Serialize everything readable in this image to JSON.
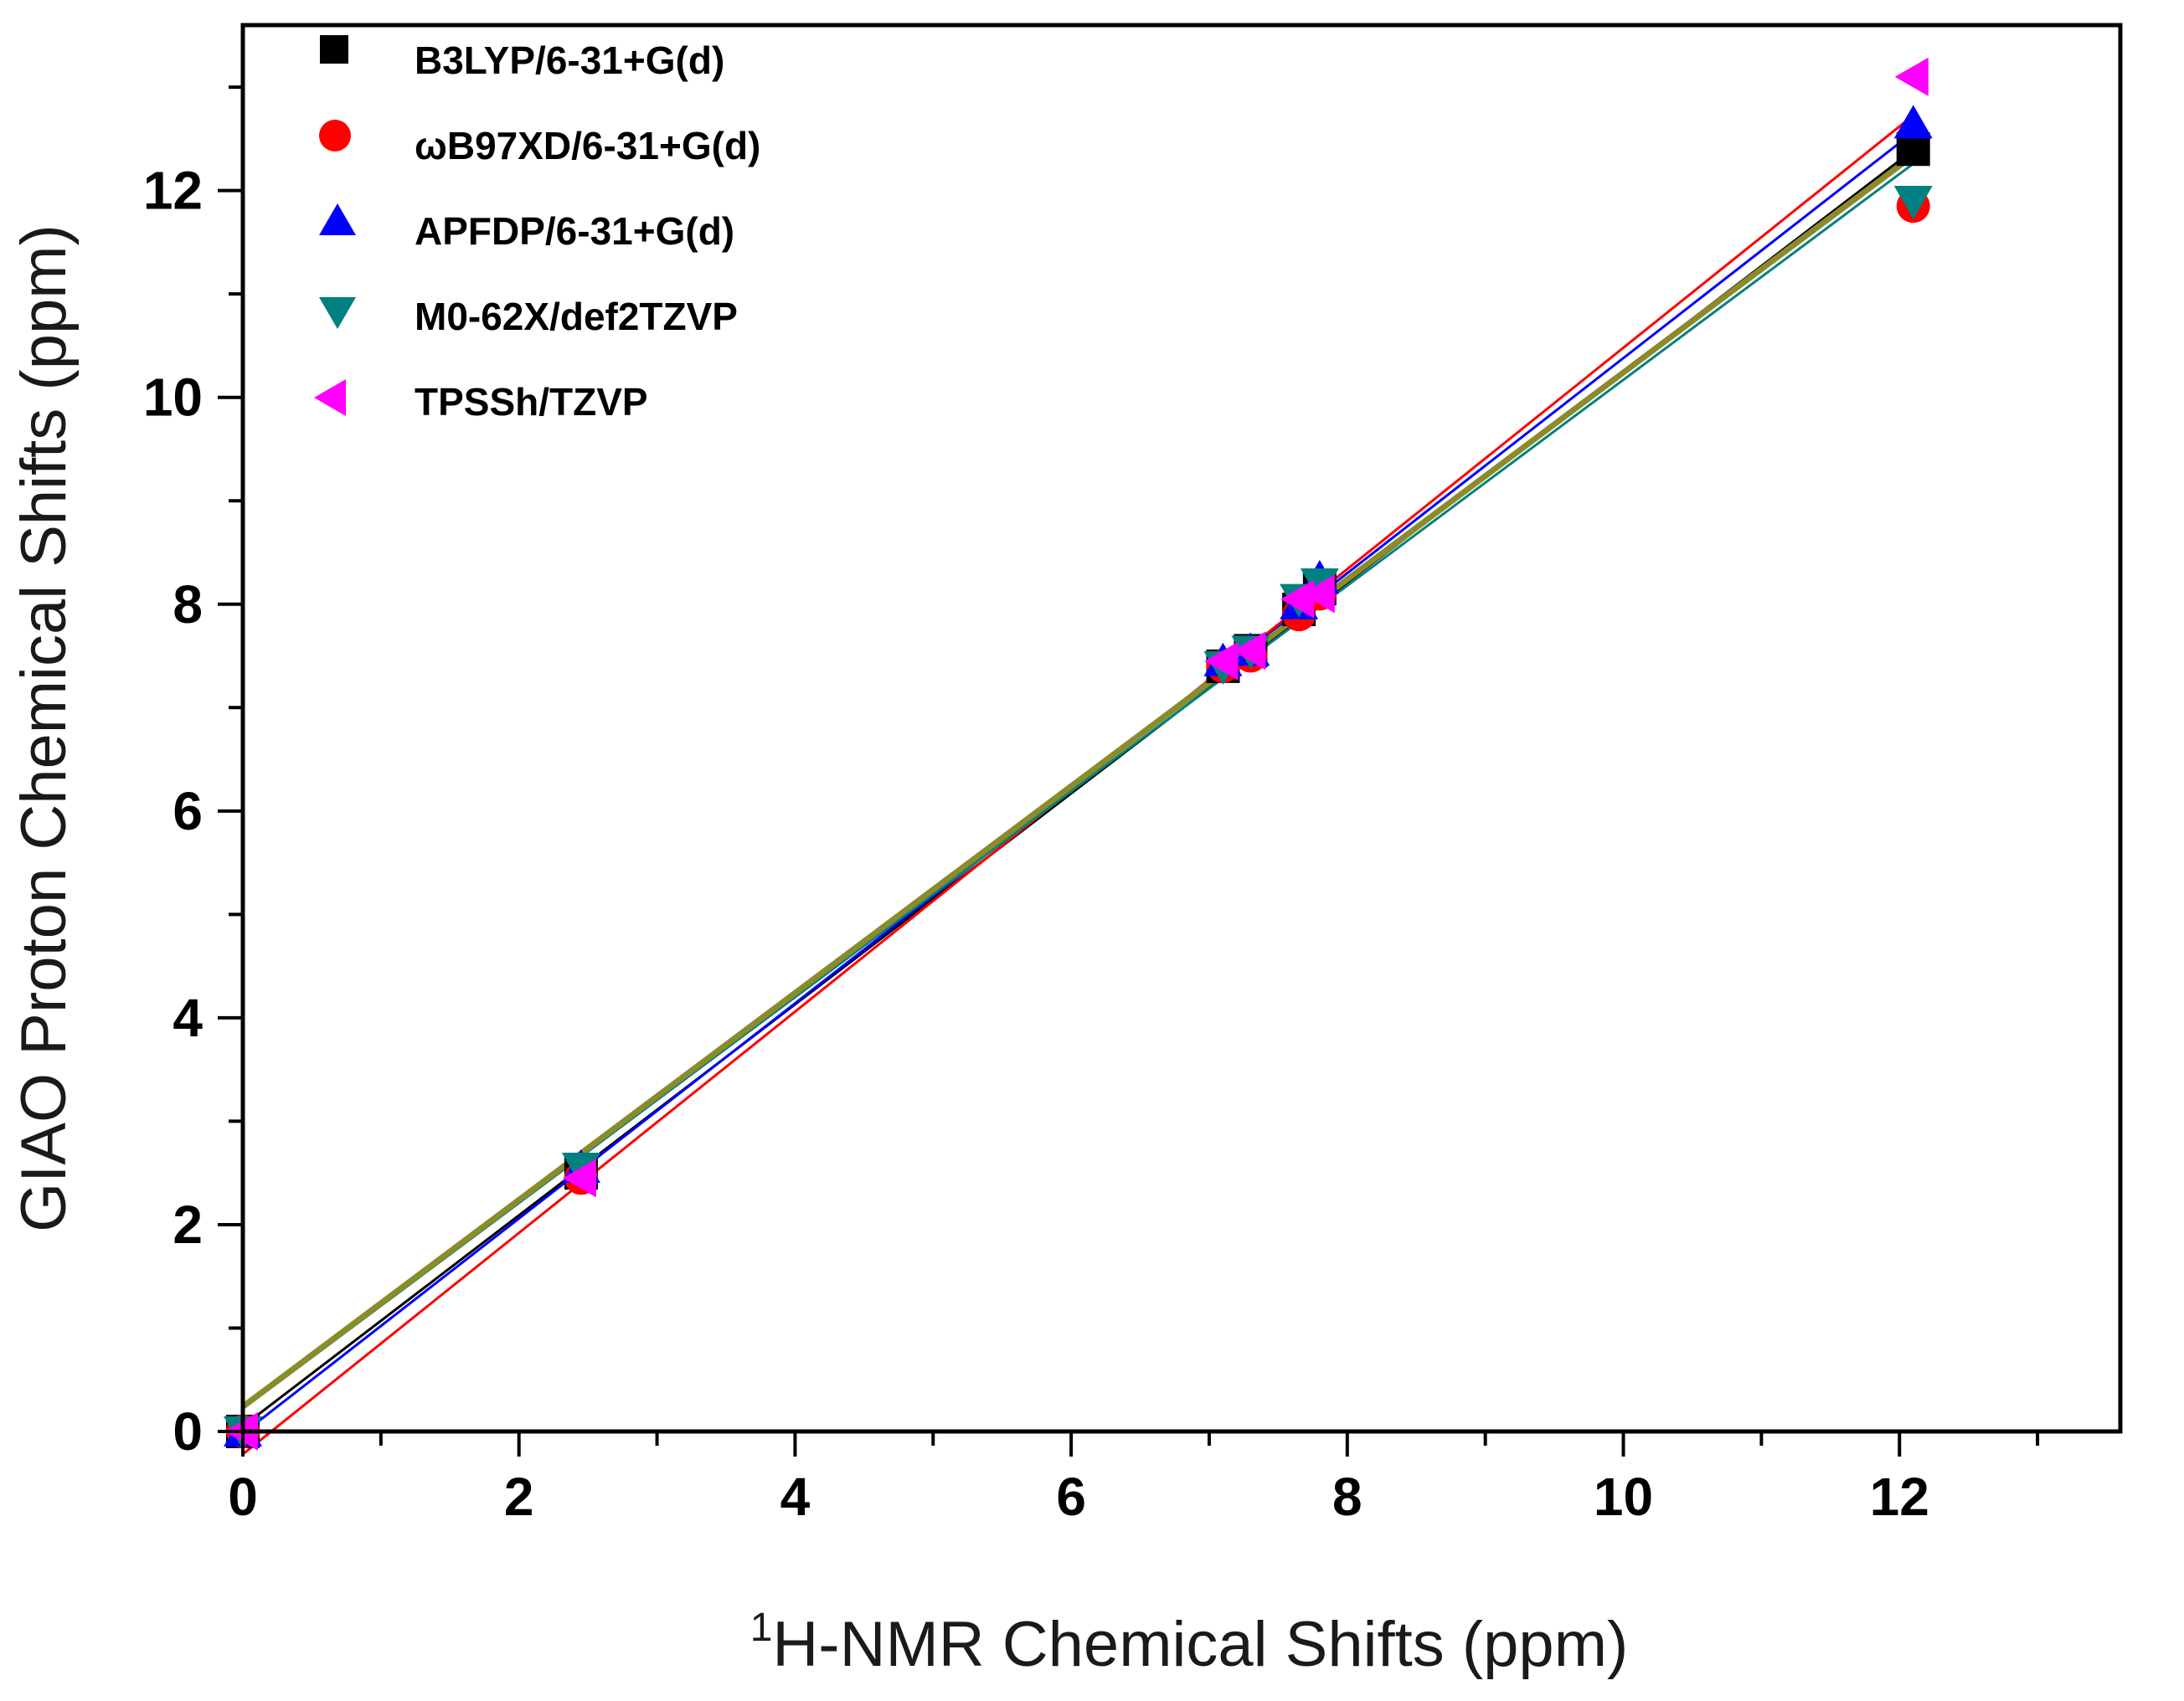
{
  "chart_data": {
    "type": "scatter",
    "title": "",
    "xlabel_sup": "1",
    "xlabel": "H-NMR Chemical Shifts (ppm)",
    "ylabel": "GIAO Proton Chemical Shifts (ppm)",
    "xlim": [
      0,
      13.6
    ],
    "ylim": [
      0,
      13.6
    ],
    "x_ticks": [
      0,
      2,
      4,
      6,
      8,
      10,
      12
    ],
    "y_ticks": [
      0,
      2,
      4,
      6,
      8,
      10,
      12
    ],
    "x_tick_labels": [
      "0",
      "2",
      "4",
      "6",
      "8",
      "10",
      "12"
    ],
    "y_tick_labels": [
      "0",
      "2",
      "4",
      "6",
      "8",
      "10",
      "12"
    ],
    "grid": false,
    "legend_position": "top-left",
    "x": [
      0.0,
      2.45,
      7.1,
      7.3,
      7.65,
      7.8,
      12.1
    ],
    "series": [
      {
        "name": "B3LYP/6-31+G(d)",
        "marker": "square",
        "color": "#000000",
        "values": [
          0.0,
          2.5,
          7.4,
          7.55,
          7.95,
          8.15,
          12.4
        ],
        "fit": {
          "slope": 1.02,
          "intercept": 0.05,
          "x_range": [
            0.0,
            12.1
          ]
        }
      },
      {
        "name": "ωB97XD/6-31+G(d)",
        "marker": "circle",
        "color": "#ff0000",
        "values": [
          0.0,
          2.45,
          7.4,
          7.5,
          7.9,
          8.1,
          11.85
        ],
        "fit": {
          "slope": 1.07,
          "intercept": -0.22,
          "x_range": [
            0.0,
            12.1
          ]
        }
      },
      {
        "name": "APFDP/6-31+G(d)",
        "marker": "triangle-up",
        "color": "#0000ff",
        "values": [
          0.0,
          2.55,
          7.45,
          7.55,
          8.0,
          8.25,
          12.65
        ],
        "fit": {
          "slope": 1.04,
          "intercept": -0.02,
          "x_range": [
            0.0,
            12.1
          ]
        }
      },
      {
        "name": "M0-62X/def2TZVP",
        "marker": "triangle-down",
        "color": "#008080",
        "values": [
          0.0,
          2.55,
          7.4,
          7.55,
          8.05,
          8.2,
          11.9
        ],
        "fit": {
          "slope": 0.995,
          "intercept": 0.22,
          "x_range": [
            0.0,
            12.1
          ]
        }
      },
      {
        "name": "TPSSh/TZVP",
        "marker": "triangle-left",
        "color": "#ff00ff",
        "values": [
          0.0,
          2.45,
          7.45,
          7.55,
          8.05,
          8.1,
          13.1
        ],
        "fit": {
          "slope": 1.0,
          "intercept": 0.24,
          "x_range": [
            0.0,
            12.1
          ],
          "line_color": "#8b8b2a"
        }
      }
    ]
  }
}
